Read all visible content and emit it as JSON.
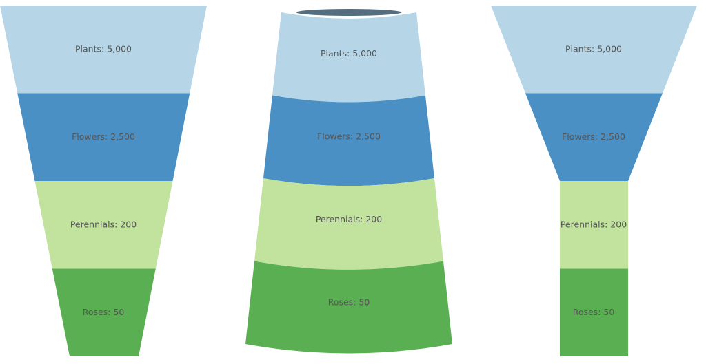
{
  "chart_data": [
    {
      "type": "funnel",
      "shape": "triangle",
      "stages": [
        {
          "category": "Plants",
          "value": "5,000",
          "color": "#b6d6e8"
        },
        {
          "category": "Flowers",
          "value": "2,500",
          "color": "#4a90c4"
        },
        {
          "category": "Perennials",
          "value": "200",
          "color": "#c1e39e"
        },
        {
          "category": "Roses",
          "value": "50",
          "color": "#5aaf52"
        }
      ]
    },
    {
      "type": "funnel",
      "shape": "3d-cone",
      "stages": [
        {
          "category": "Plants",
          "value": "5,000",
          "color": "#b6d6e8"
        },
        {
          "category": "Flowers",
          "value": "2,500",
          "color": "#4a90c4"
        },
        {
          "category": "Perennials",
          "value": "200",
          "color": "#c1e39e"
        },
        {
          "category": "Roses",
          "value": "50",
          "color": "#5aaf52"
        }
      ]
    },
    {
      "type": "funnel",
      "shape": "funnel-with-neck",
      "stages": [
        {
          "category": "Plants",
          "value": "5,000",
          "color": "#b6d6e8"
        },
        {
          "category": "Flowers",
          "value": "2,500",
          "color": "#4a90c4"
        },
        {
          "category": "Perennials",
          "value": "200",
          "color": "#c1e39e"
        },
        {
          "category": "Roses",
          "value": "50",
          "color": "#5aaf52"
        }
      ]
    }
  ]
}
